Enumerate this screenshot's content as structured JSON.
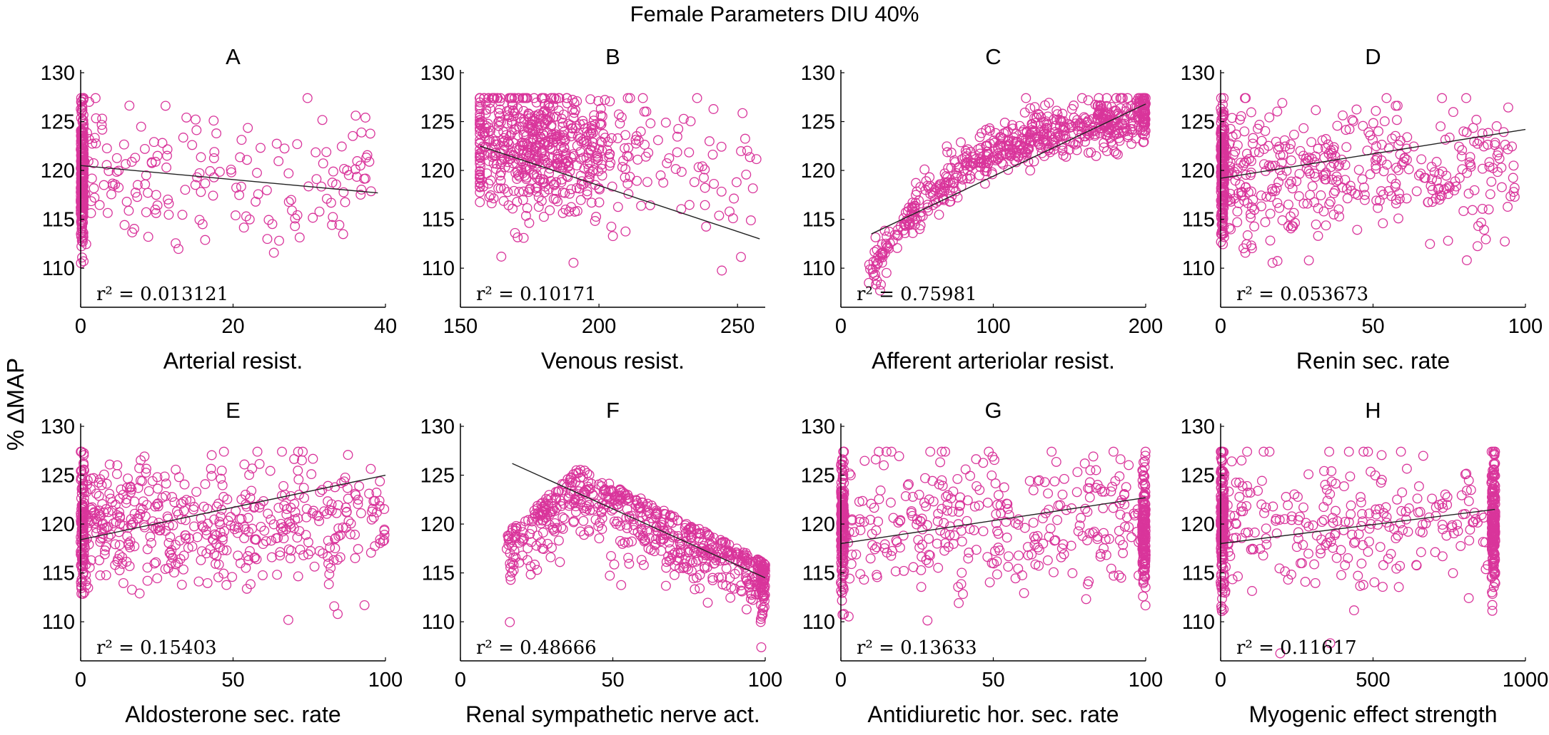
{
  "figure": {
    "suptitle": "Female Parameters DIU 40%",
    "ylabel": "% ∆MAP",
    "marker_color": "#d9359b",
    "fit_color": "#222222"
  },
  "chart_data": [
    {
      "type": "scatter",
      "panel": "A",
      "title": "A",
      "xlabel": "Arterial resist.",
      "ylabel": "% ∆MAP",
      "xlim": [
        0,
        40
      ],
      "ylim": [
        106,
        130
      ],
      "xticks": [
        0,
        20,
        40
      ],
      "yticks": [
        110,
        115,
        120,
        125,
        130
      ],
      "r2_text": "r² = 0.013121",
      "fit": {
        "x": [
          0,
          39
        ],
        "y": [
          120.5,
          117.7
        ]
      },
      "distribution": {
        "kind": "clustered",
        "anchor": 0.2,
        "cluster_width": 0.4,
        "cluster_fraction": 0.6,
        "spread_min": 0,
        "spread_max": 39,
        "y_center": 119.5,
        "y_spread": 6.0,
        "n": 420
      }
    },
    {
      "type": "scatter",
      "panel": "B",
      "title": "B",
      "xlabel": "Venous resist.",
      "ylabel": "",
      "xlim": [
        150,
        260
      ],
      "ylim": [
        106,
        130
      ],
      "xticks": [
        150,
        200,
        250
      ],
      "yticks": [
        110,
        115,
        120,
        125,
        130
      ],
      "r2_text": "r² = 0.10171",
      "fit": {
        "x": [
          157,
          258
        ],
        "y": [
          122.5,
          113.0
        ]
      },
      "distribution": {
        "kind": "blob",
        "x_center": 178,
        "x_spread": 18,
        "x_min": 157,
        "x_max": 258,
        "y_center": 120,
        "y_spread": 5.5,
        "n": 650
      }
    },
    {
      "type": "scatter",
      "panel": "C",
      "title": "C",
      "xlabel": "Afferent arteriolar resist.",
      "ylabel": "",
      "xlim": [
        0,
        200
      ],
      "ylim": [
        106,
        130
      ],
      "xticks": [
        0,
        100,
        200
      ],
      "yticks": [
        110,
        115,
        120,
        125,
        130
      ],
      "r2_text": "r² = 0.75981",
      "fit": {
        "x": [
          20,
          200
        ],
        "y": [
          113.5,
          126.8
        ]
      },
      "distribution": {
        "kind": "curve",
        "x_min": 18,
        "x_max": 200,
        "n": 650,
        "cluster_at": 200,
        "cluster_fraction": 0.12
      }
    },
    {
      "type": "scatter",
      "panel": "D",
      "title": "D",
      "xlabel": "Renin sec. rate",
      "ylabel": "",
      "xlim": [
        0,
        100
      ],
      "ylim": [
        106,
        130
      ],
      "xticks": [
        0,
        50,
        100
      ],
      "yticks": [
        110,
        115,
        120,
        125,
        130
      ],
      "r2_text": "r² = 0.053673",
      "fit": {
        "x": [
          0,
          100
        ],
        "y": [
          119.2,
          124.2
        ]
      },
      "distribution": {
        "kind": "clustered",
        "anchor": 0.5,
        "cluster_width": 1.5,
        "cluster_fraction": 0.35,
        "spread_min": 0,
        "spread_max": 97,
        "y_center": 120,
        "y_spread": 5.8,
        "n": 600
      }
    },
    {
      "type": "scatter",
      "panel": "E",
      "title": "E",
      "xlabel": "Aldosterone sec. rate",
      "ylabel": "",
      "xlim": [
        0,
        100
      ],
      "ylim": [
        106,
        130
      ],
      "xticks": [
        0,
        50,
        100
      ],
      "yticks": [
        110,
        115,
        120,
        125,
        130
      ],
      "r2_text": "r² = 0.15403",
      "fit": {
        "x": [
          0,
          100
        ],
        "y": [
          118.4,
          125.0
        ]
      },
      "distribution": {
        "kind": "clustered",
        "anchor": 0.5,
        "cluster_width": 1.5,
        "cluster_fraction": 0.2,
        "spread_min": 0,
        "spread_max": 100,
        "y_center": 120,
        "y_spread": 5.5,
        "n": 600
      }
    },
    {
      "type": "scatter",
      "panel": "F",
      "title": "F",
      "xlabel": "Renal sympathetic nerve act.",
      "ylabel": "",
      "xlim": [
        0,
        100
      ],
      "ylim": [
        106,
        130
      ],
      "xticks": [
        0,
        50,
        100
      ],
      "yticks": [
        110,
        115,
        120,
        125,
        130
      ],
      "r2_text": "r² = 0.48666",
      "fit": {
        "x": [
          17,
          100
        ],
        "y": [
          126.2,
          114.5
        ]
      },
      "distribution": {
        "kind": "arch",
        "x_min": 15,
        "x_max": 100,
        "n": 650,
        "cluster_at": 100,
        "cluster_fraction": 0.1
      }
    },
    {
      "type": "scatter",
      "panel": "G",
      "title": "G",
      "xlabel": "Antidiuretic hor. sec. rate",
      "ylabel": "",
      "xlim": [
        0,
        100
      ],
      "ylim": [
        106,
        130
      ],
      "xticks": [
        0,
        50,
        100
      ],
      "yticks": [
        110,
        115,
        120,
        125,
        130
      ],
      "r2_text": "r² = 0.13633",
      "fit": {
        "x": [
          0,
          100
        ],
        "y": [
          118.0,
          122.7
        ]
      },
      "distribution": {
        "kind": "twoend",
        "left": 0.5,
        "right": 99.5,
        "end_width": 1.2,
        "end_fraction": 0.25,
        "spread_min": 0,
        "spread_max": 100,
        "y_center": 120,
        "y_spread": 5.8,
        "n": 650
      }
    },
    {
      "type": "scatter",
      "panel": "H",
      "title": "H",
      "xlabel": "Myogenic effect strength",
      "ylabel": "",
      "xlim": [
        0,
        1000
      ],
      "ylim": [
        106,
        130
      ],
      "xticks": [
        0,
        500,
        1000
      ],
      "yticks": [
        110,
        115,
        120,
        125,
        130
      ],
      "r2_text": "r² = 0.11617",
      "fit": {
        "x": [
          0,
          900
        ],
        "y": [
          118.0,
          121.5
        ]
      },
      "distribution": {
        "kind": "twoend",
        "left": 5,
        "right": 895,
        "end_width": 12,
        "end_fraction": 0.3,
        "spread_min": 0,
        "spread_max": 900,
        "y_center": 120,
        "y_spread": 5.8,
        "n": 620
      }
    }
  ]
}
